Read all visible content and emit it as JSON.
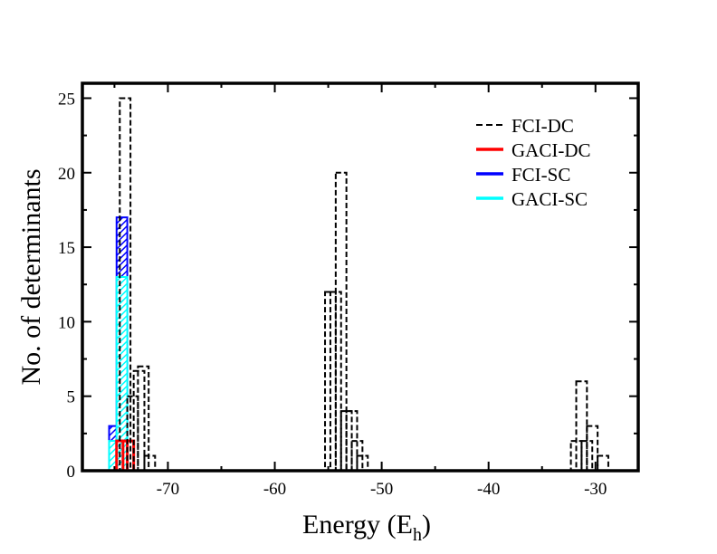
{
  "chart_data": {
    "type": "bar",
    "xlabel": "Energy (E",
    "xlabel_sub": "h",
    "xlabel_close": ")",
    "ylabel": "No. of determinants",
    "xlim": [
      -78,
      -26
    ],
    "ylim": [
      0,
      26
    ],
    "bin_width": 1,
    "grid": false,
    "legend_position": "top-right",
    "x_ticks": [
      {
        "value": -70,
        "label": "-70"
      },
      {
        "value": -60,
        "label": "-60"
      },
      {
        "value": -50,
        "label": "-50"
      },
      {
        "value": -40,
        "label": "-40"
      },
      {
        "value": -30,
        "label": "-30"
      }
    ],
    "y_ticks": [
      {
        "value": 0,
        "label": "0"
      },
      {
        "value": 5,
        "label": "5"
      },
      {
        "value": 10,
        "label": "10"
      },
      {
        "value": 15,
        "label": "15"
      },
      {
        "value": 20,
        "label": "20"
      },
      {
        "value": 25,
        "label": "25"
      }
    ],
    "series": [
      {
        "name": "FCI-DC",
        "color": "#000000",
        "style": "dashed",
        "bins": [
          {
            "x": -74,
            "value": 25
          },
          {
            "x": -73.3,
            "value": 5
          },
          {
            "x": -72.7,
            "value": 6.7
          },
          {
            "x": -72.3,
            "value": 7
          },
          {
            "x": -71.7,
            "value": 1
          },
          {
            "x": -54.8,
            "value": 12
          },
          {
            "x": -54.3,
            "value": 12
          },
          {
            "x": -53.8,
            "value": 20
          },
          {
            "x": -53.3,
            "value": 4
          },
          {
            "x": -52.8,
            "value": 4
          },
          {
            "x": -52.3,
            "value": 2
          },
          {
            "x": -51.8,
            "value": 1
          },
          {
            "x": -31.8,
            "value": 2
          },
          {
            "x": -31.3,
            "value": 6
          },
          {
            "x": -30.8,
            "value": 2
          },
          {
            "x": -30.3,
            "value": 3
          },
          {
            "x": -29.8,
            "value": 0
          },
          {
            "x": -29.3,
            "value": 1
          }
        ]
      },
      {
        "name": "GACI-DC",
        "color": "#ff0000",
        "style": "solid",
        "bins": [
          {
            "x": -74.3,
            "value": 2
          },
          {
            "x": -73.7,
            "value": 2
          }
        ]
      },
      {
        "name": "FCI-SC",
        "color": "#0000ff",
        "style": "solid",
        "bins": [
          {
            "x": -75,
            "value": 3
          },
          {
            "x": -74.3,
            "value": 17
          }
        ]
      },
      {
        "name": "GACI-SC",
        "color": "#00ffff",
        "style": "solid",
        "bins": [
          {
            "x": -75,
            "value": 2
          },
          {
            "x": -74.3,
            "value": 13
          }
        ]
      }
    ]
  }
}
